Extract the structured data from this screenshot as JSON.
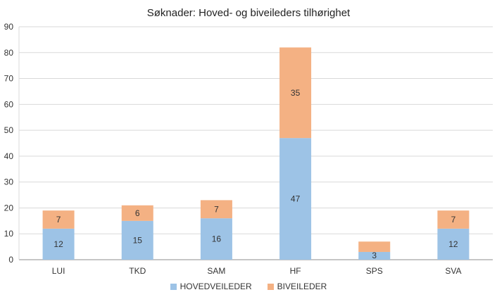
{
  "chart_data": {
    "type": "bar",
    "stacked": true,
    "title": "Søknader: Hoved- og biveileders tilhørighet",
    "xlabel": "",
    "ylabel": "",
    "categories": [
      "LUI",
      "TKD",
      "SAM",
      "HF",
      "SPS",
      "SVA"
    ],
    "series": [
      {
        "name": "HOVEDVEILEDER",
        "values": [
          12,
          15,
          16,
          47,
          3,
          12
        ],
        "color": "#9DC3E6"
      },
      {
        "name": "BIVEILEDER",
        "values": [
          7,
          6,
          7,
          35,
          4,
          7
        ],
        "color": "#F4B183"
      }
    ],
    "data_labels": {
      "HOVEDVEILEDER": [
        "12",
        "15",
        "16",
        "47",
        "3",
        "12"
      ],
      "BIVEILEDER": [
        "7",
        "6",
        "7",
        "35",
        "",
        "7"
      ]
    },
    "ylim": [
      0,
      90
    ],
    "yticks": [
      0,
      10,
      20,
      30,
      40,
      50,
      60,
      70,
      80,
      90
    ],
    "grid": true,
    "legend_position": "bottom"
  }
}
